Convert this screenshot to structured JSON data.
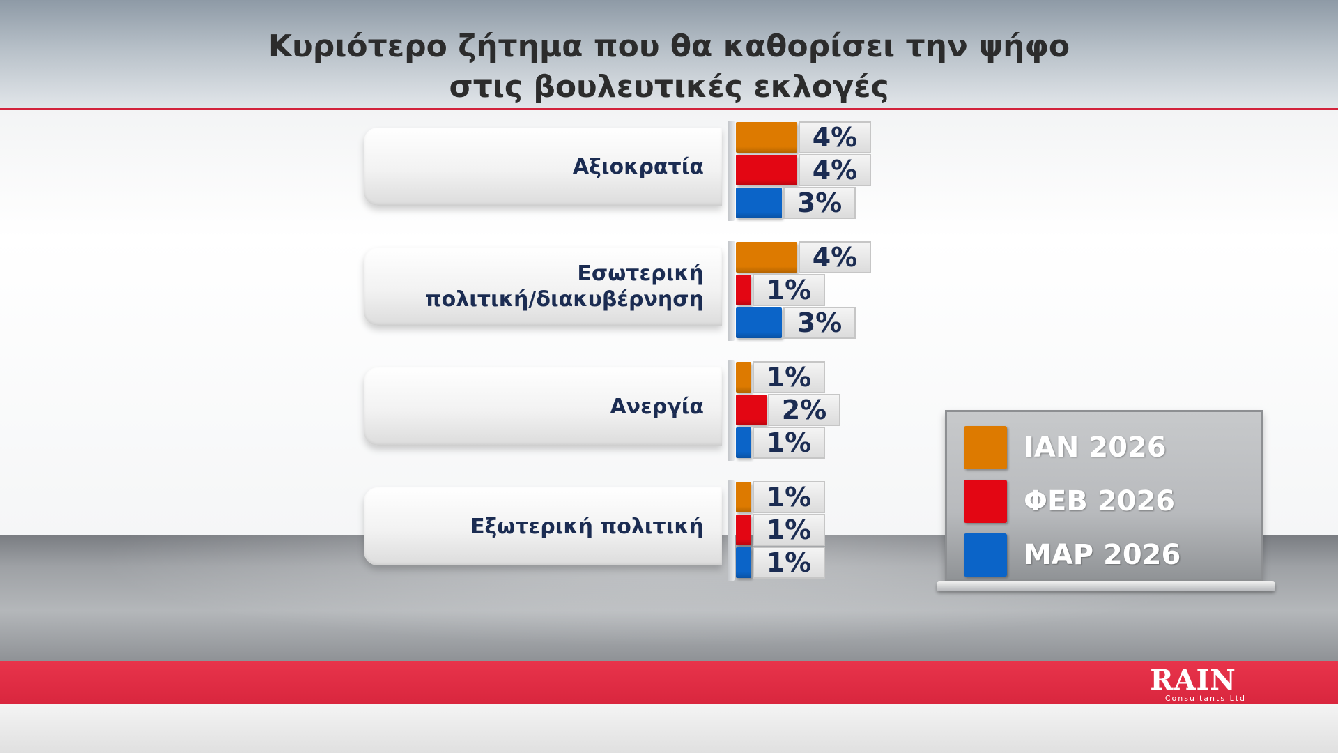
{
  "chart_data": {
    "type": "bar",
    "title": "Κυριότερο ζήτημα που θα καθορίσει την ψήφο στις βουλευτικές εκλογές",
    "title_lines": [
      "Κυριότερο ζήτημα που θα καθορίσει την ψήφο",
      "στις βουλευτικές εκλογές"
    ],
    "orientation": "horizontal",
    "categories": [
      "Αξιοκρατία",
      "Εσωτερική πολιτική/διακυβέρνηση",
      "Ανεργία",
      "Εξωτερική πολιτική"
    ],
    "category_lines": [
      [
        "Αξιοκρατία"
      ],
      [
        "Εσωτερική",
        "πολιτική/διακυβέρνηση"
      ],
      [
        "Ανεργία"
      ],
      [
        "Εξωτερική πολιτική"
      ]
    ],
    "series": [
      {
        "name": "ΙΑΝ 2026",
        "color": "#dd7a00",
        "values": [
          4,
          4,
          1,
          1
        ]
      },
      {
        "name": "ΦΕΒ 2026",
        "color": "#e30613",
        "values": [
          4,
          1,
          2,
          1
        ]
      },
      {
        "name": "ΜΑΡ 2026",
        "color": "#0b64c8",
        "values": [
          3,
          3,
          1,
          1
        ]
      }
    ],
    "value_suffix": "%",
    "legend_position": "right",
    "grid": false
  },
  "branding": {
    "logo_text": "RAIN",
    "logo_subtitle": "Consultants Ltd"
  }
}
